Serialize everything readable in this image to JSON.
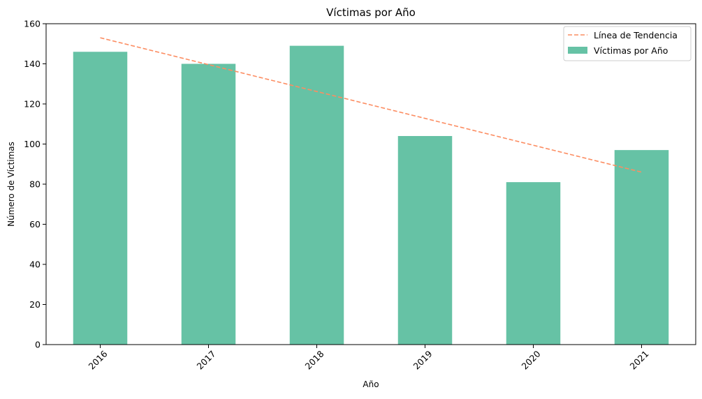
{
  "chart_data": {
    "type": "bar",
    "title": "Víctimas por Año",
    "xlabel": "Año",
    "ylabel": "Número de Víctimas",
    "categories": [
      "2016",
      "2017",
      "2018",
      "2019",
      "2020",
      "2021"
    ],
    "series": [
      {
        "name": "Víctimas por Año",
        "type": "bar",
        "values": [
          146,
          140,
          149,
          104,
          81,
          97
        ],
        "color": "#66c2a5"
      },
      {
        "name": "Línea de Tendencia",
        "type": "line",
        "style": "dashed",
        "values": [
          153,
          139.6,
          126.2,
          112.8,
          99.4,
          86
        ],
        "color": "#fc8d62"
      }
    ],
    "ylim": [
      0,
      160
    ],
    "yticks": [
      0,
      20,
      40,
      60,
      80,
      100,
      120,
      140,
      160
    ],
    "x_tick_rotation_deg": 45,
    "grid": false,
    "legend_position": "top-right"
  }
}
